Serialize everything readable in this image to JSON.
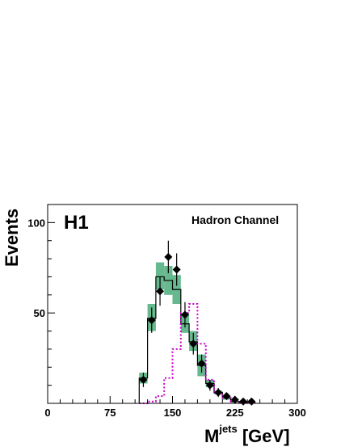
{
  "chart_data": {
    "type": "bar",
    "ylabel": "Events",
    "xlabel_main": "M",
    "xlabel_sup": "jets",
    "xlabel_unit": " [GeV]",
    "experiment_label": "H1",
    "channel_label": "Hadron Channel",
    "xlim": [
      0,
      300
    ],
    "ylim": [
      0,
      110
    ],
    "xticks": [
      0,
      75,
      150,
      225,
      300
    ],
    "yticks": [
      50,
      100
    ],
    "bin_width": 10,
    "data_points": {
      "x": [
        115,
        125,
        135,
        145,
        155,
        165,
        175,
        185,
        195,
        205,
        215,
        225,
        235,
        245
      ],
      "y": [
        13,
        46,
        62,
        81,
        74,
        49,
        33,
        22,
        10,
        6,
        4,
        2,
        1,
        1
      ],
      "yerr": [
        4,
        7,
        8,
        9,
        9,
        7,
        6,
        5,
        3,
        2.5,
        2,
        1.5,
        1,
        1
      ]
    },
    "signal_mc": {
      "bin_edges": [
        110,
        120,
        130,
        140,
        150,
        160,
        170,
        180,
        190,
        200,
        210,
        220,
        230,
        240
      ],
      "values": [
        14,
        47,
        70,
        68,
        63,
        44,
        34,
        21,
        11,
        6,
        3,
        1,
        0.5
      ],
      "band_low": [
        11,
        40,
        63,
        60,
        55,
        39,
        29,
        15,
        9,
        5,
        2,
        0.5,
        0
      ],
      "band_high": [
        17,
        55,
        78,
        76,
        71,
        50,
        40,
        27,
        13,
        7,
        4,
        1.5,
        1
      ]
    },
    "background_mc": {
      "bin_edges": [
        110,
        120,
        130,
        140,
        150,
        160,
        170,
        180,
        190,
        200,
        210,
        220,
        230,
        240,
        250
      ],
      "values": [
        0,
        1,
        4,
        14,
        30,
        50,
        55,
        33,
        13,
        6,
        3,
        1,
        0.5,
        0.5
      ]
    },
    "colors": {
      "band": "#66b88e",
      "data": "#000000",
      "signal_line": "#000000",
      "background_line": "#cc00cc"
    }
  }
}
